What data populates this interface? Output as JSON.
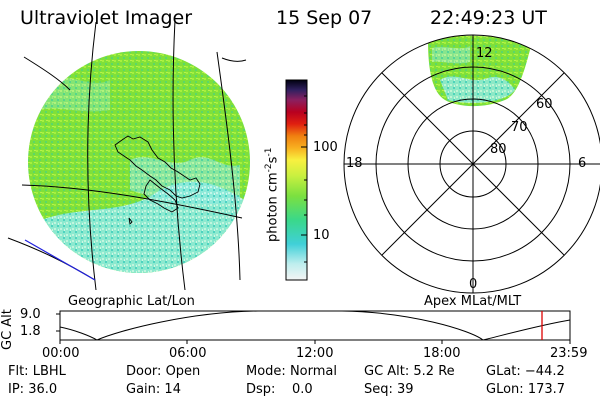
{
  "header": {
    "instrument": "Ultraviolet Imager",
    "date": "15 Sep 07",
    "time": "22:49:23 UT"
  },
  "left_panel": {
    "label": "Geographic Lat/Lon"
  },
  "colorbar": {
    "unit": "photon cm",
    "unit_exp1": "-2",
    "unit_mid": "s",
    "unit_exp2": "-1",
    "ticks": [
      "100",
      "10"
    ]
  },
  "right_panel": {
    "label": "Apex MLat/MLT",
    "mlt_labels": {
      "top": "12",
      "left": "18",
      "right": "6",
      "bottom": "0"
    },
    "lat_labels": [
      "60",
      "70",
      "80"
    ]
  },
  "altitude_plot": {
    "ylabel": "GC Alt",
    "yticks": [
      "9.0",
      "1.8"
    ],
    "xticks": [
      "00:00",
      "06:00",
      "12:00",
      "18:00",
      "23:59"
    ],
    "marker_color": "#dd0000"
  },
  "status": {
    "flt_label": "Flt:",
    "flt": "LBHL",
    "ip_label": "IP:",
    "ip": "36.0",
    "door_label": "Door:",
    "door": "Open",
    "gain_label": "Gain:",
    "gain": "14",
    "mode_label": "Mode:",
    "mode": "Normal",
    "dsp_label": "Dsp:",
    "dsp": "0.0",
    "gcalt_label": "GC Alt:",
    "gcalt": "5.2 Re",
    "seq_label": "Seq:",
    "seq": "39",
    "glat_label": "GLat:",
    "glat": "−44.2",
    "glon_label": "GLon:",
    "glon": "173.7"
  },
  "colors": {
    "image_green": "#7fe03a",
    "image_cyan": "#9ff0e8",
    "oval_cyan": "#55d6e8",
    "oval_green": "#a8ee44"
  }
}
